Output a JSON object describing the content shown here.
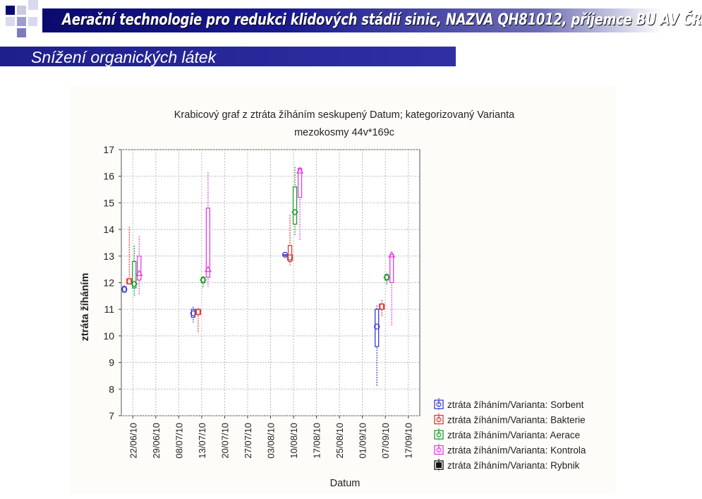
{
  "header": {
    "title": "Aerační technologie pro redukci klidových stádií sinic, NAZVA QH81012, příjemce BU AV ČR",
    "subtitle": "Snížení organických látek"
  },
  "colors": {
    "title_bar": "#0a0a6e",
    "sub_bar": "#1e1e8c",
    "sorbent": "#3b3bd1",
    "bakterie": "#e03a3a",
    "aerace": "#1f9a2e",
    "kontrola": "#e23ee6",
    "rybnik": "#111111"
  },
  "chart_data": {
    "type": "box",
    "title": "Krabicový graf z ztráta žíháním seskupený Datum; kategorizovaný Varianta",
    "subtitle": "mezokosmy 44v*169c",
    "xlabel": "Datum",
    "ylabel": "ztráta žíháním",
    "ylim": [
      7,
      17
    ],
    "yticks": [
      "7",
      "8",
      "9",
      "10",
      "11",
      "12",
      "13",
      "14",
      "15",
      "16",
      "17"
    ],
    "categories": [
      "22/06/10",
      "29/06/10",
      "08/07/10",
      "13/07/10",
      "20/07/10",
      "27/07/10",
      "03/08/10",
      "10/08/10",
      "17/08/10",
      "25/08/10",
      "01/09/10",
      "07/09/10",
      "17/09/10"
    ],
    "grid": true,
    "legend_position": "bottom-right",
    "series": [
      {
        "name": "ztráta žíháním/Varianta: Sorbent",
        "color": "#3b3bd1",
        "points": [
          {
            "date": "22/06/10",
            "median": 11.75,
            "q1": 11.65,
            "q3": 11.85,
            "min": 11.6,
            "max": 11.9
          },
          {
            "date": "13/07/10",
            "median": 10.85,
            "q1": 10.7,
            "q3": 11.0,
            "min": 10.5,
            "max": 11.1
          },
          {
            "date": "10/08/10",
            "median": 13.05,
            "q1": 13.05,
            "q3": 13.05,
            "min": 13.05,
            "max": 13.05
          },
          {
            "date": "07/09/10",
            "median": 10.35,
            "q1": 9.6,
            "q3": 11.0,
            "min": 8.1,
            "max": 11.15
          }
        ]
      },
      {
        "name": "ztráta žíháním/Varianta: Bakterie",
        "color": "#e03a3a",
        "points": [
          {
            "date": "22/06/10",
            "median": 12.05,
            "q1": 11.95,
            "q3": 12.15,
            "min": 11.95,
            "max": 14.1
          },
          {
            "date": "13/07/10",
            "median": 10.9,
            "q1": 10.8,
            "q3": 11.0,
            "min": 10.1,
            "max": 11.05
          },
          {
            "date": "10/08/10",
            "median": 12.95,
            "q1": 12.8,
            "q3": 13.4,
            "min": 12.65,
            "max": 14.55
          },
          {
            "date": "07/09/10",
            "median": 11.1,
            "q1": 11.0,
            "q3": 11.2,
            "min": 10.7,
            "max": 11.35
          }
        ]
      },
      {
        "name": "ztráta žíháním/Varianta: Aerace",
        "color": "#1f9a2e",
        "points": [
          {
            "date": "22/06/10",
            "median": 11.95,
            "q1": 11.8,
            "q3": 12.8,
            "min": 11.5,
            "max": 13.4
          },
          {
            "date": "13/07/10",
            "median": 12.1,
            "q1": 12.0,
            "q3": 12.2,
            "min": 11.8,
            "max": 12.25
          },
          {
            "date": "10/08/10",
            "median": 14.65,
            "q1": 14.2,
            "q3": 15.6,
            "min": 13.75,
            "max": 16.35
          },
          {
            "date": "07/09/10",
            "median": 12.2,
            "q1": 12.1,
            "q3": 12.3,
            "min": 11.9,
            "max": 12.35
          }
        ]
      },
      {
        "name": "ztráta žíháním/Varianta: Kontrola",
        "color": "#e23ee6",
        "points": [
          {
            "date": "22/06/10",
            "median": 12.35,
            "q1": 12.1,
            "q3": 13.0,
            "min": 11.55,
            "max": 13.75
          },
          {
            "date": "13/07/10",
            "median": 12.5,
            "q1": 12.2,
            "q3": 14.8,
            "min": 11.85,
            "max": 16.15
          },
          {
            "date": "10/08/10",
            "median": 16.2,
            "q1": 15.2,
            "q3": 16.3,
            "min": 13.6,
            "max": 16.35
          },
          {
            "date": "07/09/10",
            "median": 13.05,
            "q1": 12.0,
            "q3": 13.05,
            "min": 10.4,
            "max": 13.05
          }
        ]
      },
      {
        "name": "ztráta žíháním/Varianta: Rybnik",
        "color": "#111111",
        "points": []
      }
    ]
  }
}
